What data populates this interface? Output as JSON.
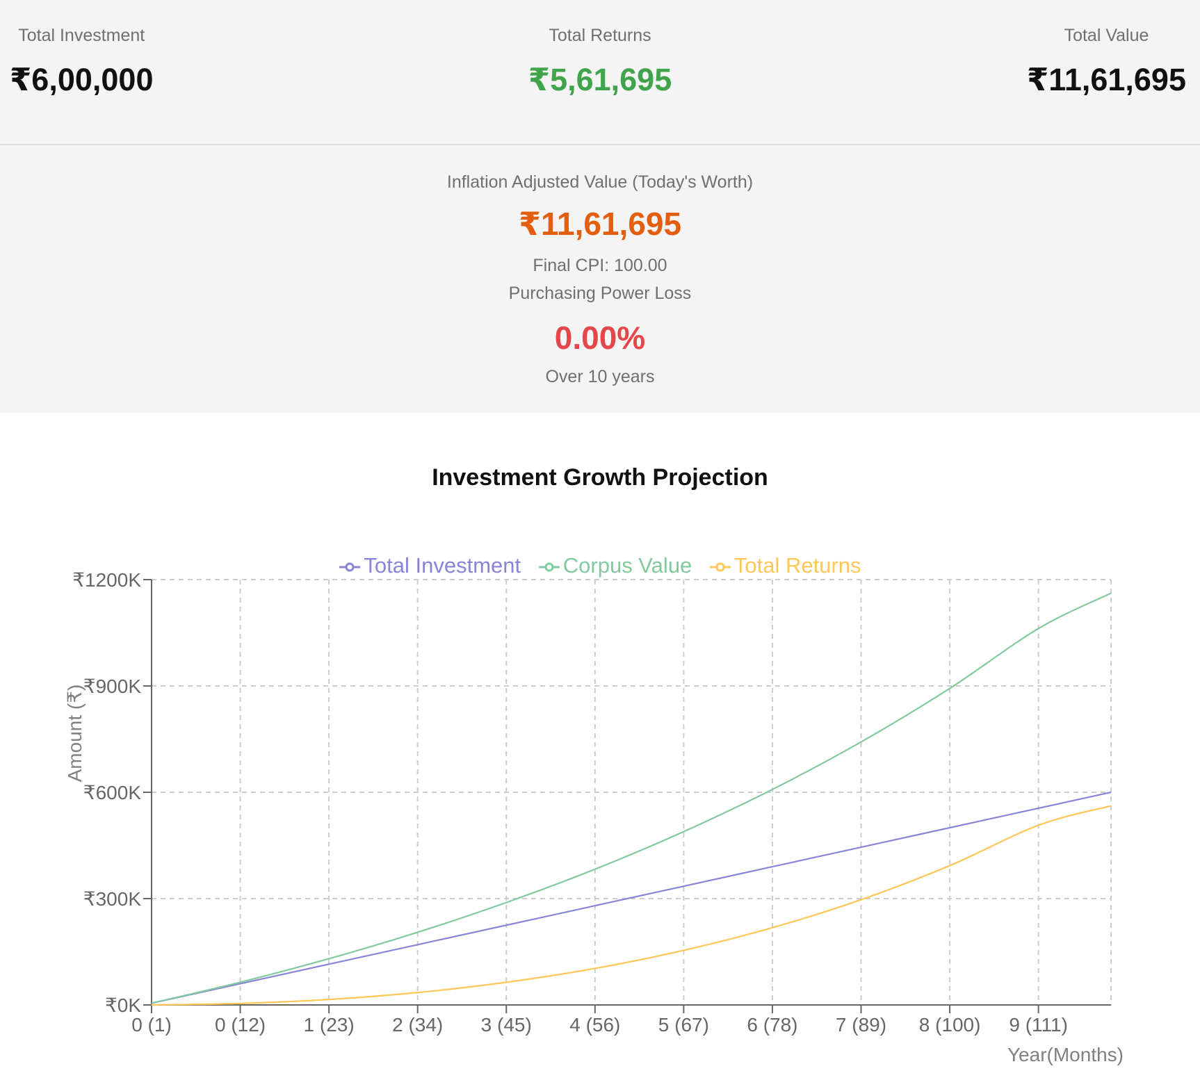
{
  "summary": {
    "total_investment": {
      "label": "Total Investment",
      "value": "₹6,00,000",
      "color": "#111111"
    },
    "total_returns": {
      "label": "Total Returns",
      "value": "₹5,61,695",
      "color": "#41a44c"
    },
    "total_value": {
      "label": "Total Value",
      "value": "₹11,61,695",
      "color": "#111111"
    }
  },
  "inflation": {
    "label": "Inflation Adjusted Value (Today's Worth)",
    "value": "₹11,61,695",
    "final_cpi": "Final CPI: 100.00",
    "ppl_label": "Purchasing Power Loss",
    "ppl_value": "0.00%",
    "period": "Over 10 years"
  },
  "chart_data": {
    "type": "line",
    "title": "Investment Growth Projection",
    "xlabel": "Year(Months)",
    "ylabel": "Amount (₹)",
    "ylim": [
      0,
      1200000
    ],
    "y_ticks": [
      "₹0K",
      "₹300K",
      "₹600K",
      "₹900K",
      "₹1200K"
    ],
    "y_tick_values": [
      0,
      300000,
      600000,
      900000,
      1200000
    ],
    "x_ticks": [
      "0 (1)",
      "0 (12)",
      "1 (23)",
      "2 (34)",
      "3 (45)",
      "4 (56)",
      "5 (67)",
      "6 (78)",
      "7 (89)",
      "8 (100)",
      "9 (111)"
    ],
    "x_tick_months": [
      1,
      12,
      23,
      34,
      45,
      56,
      67,
      78,
      89,
      100,
      111
    ],
    "x_range_months": [
      1,
      120
    ],
    "grid": true,
    "legend_position": "top",
    "x": [
      1,
      12,
      23,
      34,
      45,
      56,
      67,
      78,
      89,
      100,
      111,
      120
    ],
    "series": [
      {
        "name": "Total Investment",
        "color": "#8884d8",
        "values": [
          5000,
          60000,
          115000,
          170000,
          225000,
          280000,
          335000,
          390000,
          445000,
          500000,
          555000,
          600000
        ]
      },
      {
        "name": "Corpus Value",
        "color": "#82ca9d",
        "values": [
          5050,
          64200,
          130400,
          205000,
          289000,
          383000,
          489000,
          608000,
          742000,
          893000,
          1062000,
          1161695
        ]
      },
      {
        "name": "Total Returns",
        "color": "#ffc658",
        "values": [
          50,
          4200,
          15400,
          35000,
          64000,
          103000,
          154000,
          218000,
          297000,
          393000,
          507000,
          561695
        ]
      }
    ]
  }
}
